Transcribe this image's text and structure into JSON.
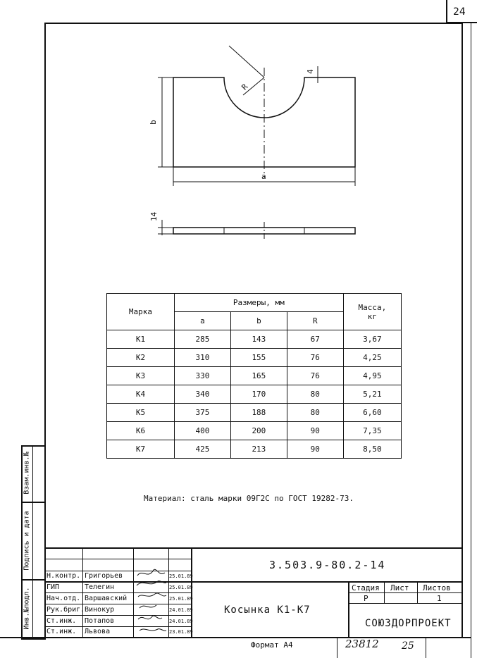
{
  "sheet_number": "24",
  "drawing": {
    "dim_thickness_top": "4",
    "dim_radius": "R",
    "dim_b": "b",
    "dim_a": "a",
    "dim_thickness_side": "14"
  },
  "table": {
    "header_mark": "Марка",
    "header_dims": "Размеры, мм",
    "header_mass": "Масса,",
    "header_mass_unit": "кг",
    "col_a": "a",
    "col_b": "b",
    "col_r": "R",
    "rows": [
      {
        "mark": "К1",
        "a": "285",
        "b": "143",
        "r": "67",
        "mass": "3,67"
      },
      {
        "mark": "К2",
        "a": "310",
        "b": "155",
        "r": "76",
        "mass": "4,25"
      },
      {
        "mark": "К3",
        "a": "330",
        "b": "165",
        "r": "76",
        "mass": "4,95"
      },
      {
        "mark": "К4",
        "a": "340",
        "b": "170",
        "r": "80",
        "mass": "5,21"
      },
      {
        "mark": "К5",
        "a": "375",
        "b": "188",
        "r": "80",
        "mass": "6,60"
      },
      {
        "mark": "К6",
        "a": "400",
        "b": "200",
        "r": "90",
        "mass": "7,35"
      },
      {
        "mark": "К7",
        "a": "425",
        "b": "213",
        "r": "90",
        "mass": "8,50"
      }
    ]
  },
  "material_note": "Материал: сталь марки 09Г2С по ГОСТ 19282-73.",
  "side_stamp": {
    "inv_orig": "Инв.№подл.",
    "sign_date": "Подпись и дата",
    "vzam": "Взам.инв.№"
  },
  "title_block": {
    "doc_code": "3.503.9-80.2-14",
    "title": "Косынка К1-К7",
    "stage_label": "Стадия",
    "sheet_label": "Лист",
    "sheets_label": "Листов",
    "stage_value": "Р",
    "sheets_value": "1",
    "org": "СОЮЗДОРПРОЕКТ",
    "people": [
      {
        "role": "Н.контр.",
        "name": "Григорьев",
        "date": "25.01.89"
      },
      {
        "role": "ГИП",
        "name": "Телегин",
        "date": "25.01.89"
      },
      {
        "role": "Нач.отд.",
        "name": "Варшавский",
        "date": "25.01.89"
      },
      {
        "role": "Рук.бриг.",
        "name": "Винокур",
        "date": "24.01.89"
      },
      {
        "role": "Ст.инж.",
        "name": "Потапов",
        "date": "24.01.89"
      },
      {
        "role": "Ст.инж.",
        "name": "Львова",
        "date": "23.01.89"
      }
    ]
  },
  "footer": {
    "format": "Формат А4",
    "handwritten_code": "23812",
    "handwritten_page": "25"
  }
}
